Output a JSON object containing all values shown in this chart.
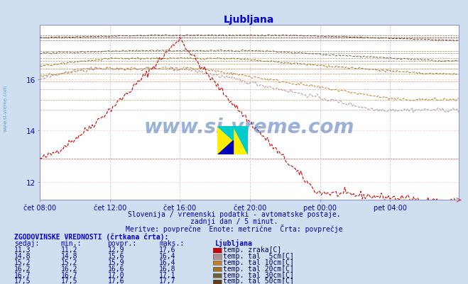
{
  "title": "Ljubljana",
  "bg_color": "#d0dff0",
  "plot_bg_color": "#ffffff",
  "title_color": "#0000cc",
  "subtitle_color": "#0000aa",
  "xlabel_color": "#0000aa",
  "subtitle1": "Slovenija / vremenski podatki - avtomatske postaje.",
  "subtitle2": "zadnji dan / 5 minut.",
  "subtitle3": "Meritve: povprečne  Enote: metrične  Črta: povprečje",
  "watermark": "www.si-vreme.com",
  "side_label": "www.si-vreme.com",
  "side_label_color": "#5599cc",
  "xlabels": [
    "čet 08:00",
    "čet 12:00",
    "čet 16:00",
    "čet 20:00",
    "pet 00:00",
    "pet 04:00"
  ],
  "xtick_positions": [
    0,
    48,
    96,
    144,
    192,
    240
  ],
  "ylim": [
    11.3,
    18.1
  ],
  "yticks": [
    12,
    14,
    16
  ],
  "n_points": 288,
  "colors": {
    "temp_zraka": "#cc0000",
    "temp_tal_5cm": "#b09090",
    "temp_tal_10cm": "#c08030",
    "temp_tal_20cm": "#a07020",
    "temp_tal_30cm": "#706040",
    "temp_tal_50cm": "#604020"
  },
  "ref_lines": [
    [
      11.2,
      "#cc0000"
    ],
    [
      12.9,
      "#cc0000"
    ],
    [
      17.6,
      "#cc0000"
    ],
    [
      14.8,
      "#b09090"
    ],
    [
      15.6,
      "#b09090"
    ],
    [
      16.4,
      "#b09090"
    ],
    [
      15.2,
      "#c08030"
    ],
    [
      15.9,
      "#c08030"
    ],
    [
      16.4,
      "#c08030"
    ],
    [
      16.2,
      "#a07020"
    ],
    [
      16.6,
      "#a07020"
    ],
    [
      16.8,
      "#a07020"
    ],
    [
      16.7,
      "#706040"
    ],
    [
      17.0,
      "#706040"
    ],
    [
      17.1,
      "#706040"
    ],
    [
      17.5,
      "#604020"
    ],
    [
      17.6,
      "#604020"
    ],
    [
      17.7,
      "#604020"
    ]
  ],
  "grid_pink": "#ffcccc",
  "grid_v_color": "#ddbbdd",
  "table_header_color": "#0000cc",
  "table_data_color": "#000088",
  "table_label_color": "#000055",
  "rows": [
    [
      "11,3",
      "11,2",
      "12,9",
      "17,6",
      "temp. zraka[C]",
      "#cc0000"
    ],
    [
      "14,8",
      "14,8",
      "15,6",
      "16,4",
      "temp. tal  5cm[C]",
      "#b09090"
    ],
    [
      "15,2",
      "15,2",
      "15,9",
      "16,4",
      "temp. tal 10cm[C]",
      "#c08030"
    ],
    [
      "16,2",
      "16,2",
      "16,6",
      "16,8",
      "temp. tal 20cm[C]",
      "#a07020"
    ],
    [
      "16,7",
      "16,7",
      "17,0",
      "17,1",
      "temp. tal 30cm[C]",
      "#706040"
    ],
    [
      "17,5",
      "17,5",
      "17,6",
      "17,7",
      "temp. tal 50cm[C]",
      "#604020"
    ]
  ]
}
